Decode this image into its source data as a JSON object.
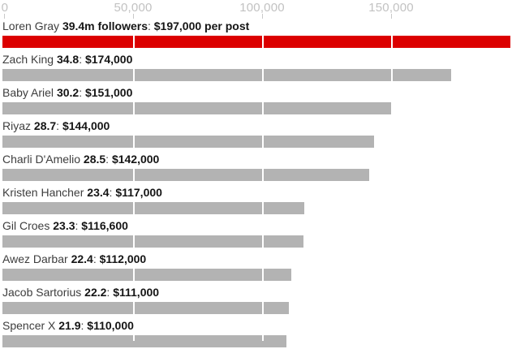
{
  "colors": {
    "bar_highlight": "#dc0000",
    "bar_default": "#b3b3b3",
    "axis_label": "#c2c2c2",
    "tick_mark": "#c9c9c9",
    "gridline": "#ffffff",
    "label_regular": "#3d3d3d",
    "label_bold": "#151515",
    "background": "#ffffff"
  },
  "separators": {
    "name_stat": " ",
    "stat_amount": ": "
  },
  "chart_data": {
    "type": "bar",
    "orientation": "horizontal",
    "title": "",
    "xlabel": "",
    "ylabel": "",
    "grid": "vertical white gridlines over bars at axis ticks",
    "legend": "none",
    "axis": {
      "position": "top",
      "min": 0,
      "max": 198000,
      "ticks": [
        {
          "label": "0",
          "value": 0
        },
        {
          "label": "50,000",
          "value": 50000
        },
        {
          "label": "100,000",
          "value": 100000
        },
        {
          "label": "150,000",
          "value": 150000
        }
      ]
    },
    "rows": [
      {
        "name": "Loren Gray",
        "stat": "39.4m followers",
        "amount": "$197,000 per post",
        "value": 197000,
        "highlight": true
      },
      {
        "name": "Zach King",
        "stat": "34.8",
        "amount": "$174,000",
        "value": 174000,
        "highlight": false
      },
      {
        "name": "Baby Ariel",
        "stat": "30.2",
        "amount": "$151,000",
        "value": 151000,
        "highlight": false
      },
      {
        "name": "Riyaz",
        "stat": "28.7",
        "amount": "$144,000",
        "value": 144000,
        "highlight": false
      },
      {
        "name": "Charli D'Amelio",
        "stat": "28.5",
        "amount": "$142,000",
        "value": 142000,
        "highlight": false
      },
      {
        "name": "Kristen Hancher",
        "stat": "23.4",
        "amount": "$117,000",
        "value": 117000,
        "highlight": false
      },
      {
        "name": "Gil Croes",
        "stat": "23.3",
        "amount": "$116,600",
        "value": 116600,
        "highlight": false
      },
      {
        "name": "Awez Darbar",
        "stat": "22.4",
        "amount": "$112,000",
        "value": 112000,
        "highlight": false
      },
      {
        "name": "Jacob Sartorius",
        "stat": "22.2",
        "amount": "$111,000",
        "value": 111000,
        "highlight": false
      },
      {
        "name": "Spencer X",
        "stat": "21.9",
        "amount": "$110,000",
        "value": 110000,
        "highlight": false
      }
    ]
  }
}
